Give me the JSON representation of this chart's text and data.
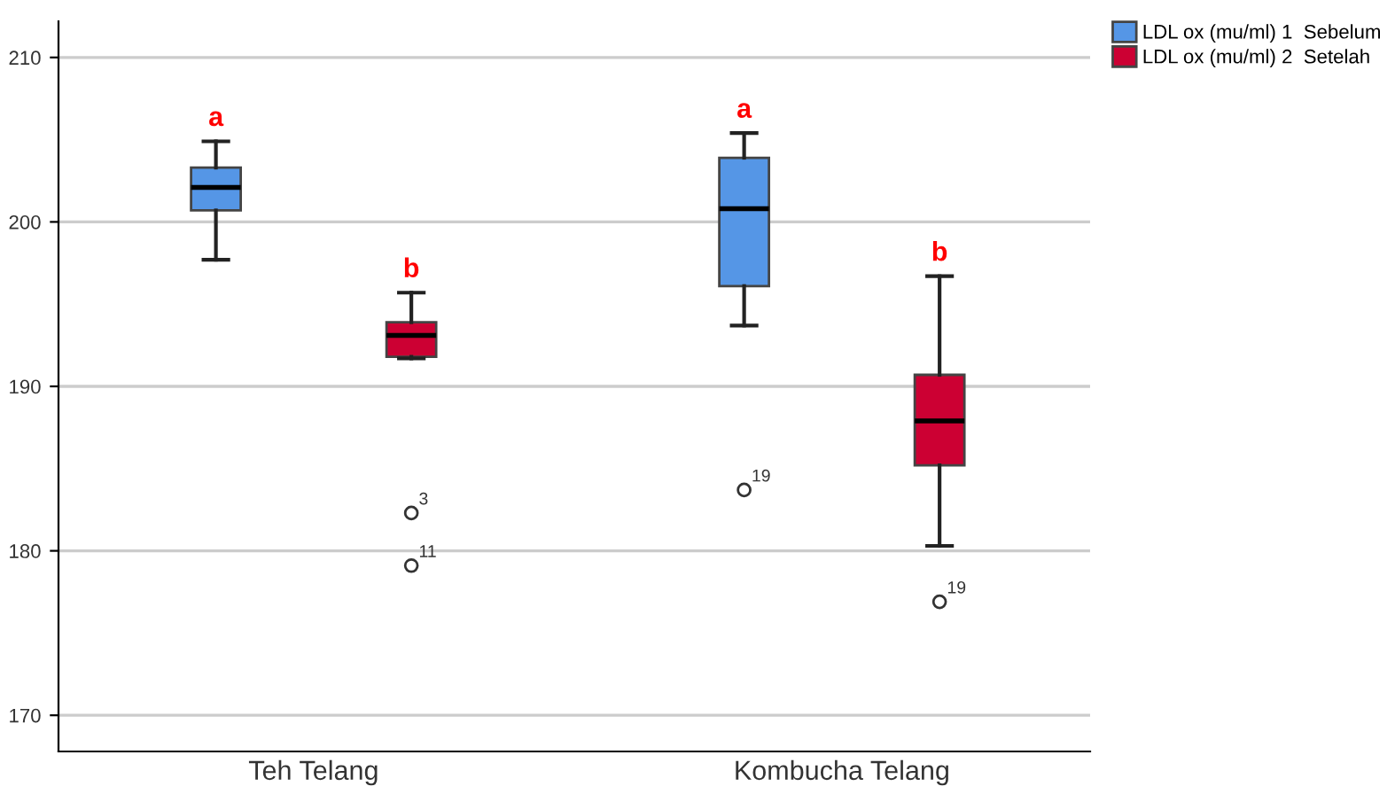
{
  "chart_data": {
    "type": "box",
    "categories": [
      "Teh Telang",
      "Kombucha Telang"
    ],
    "series": [
      {
        "name": "LDL ox (mu/ml) 1  Sebelum",
        "color": "#5596e6",
        "boxes": [
          {
            "low": 197.7,
            "q1": 200.7,
            "median": 202.1,
            "q3": 203.3,
            "high": 204.9
          },
          {
            "low": 193.7,
            "q1": 196.1,
            "median": 200.8,
            "q3": 203.9,
            "high": 205.4,
            "outliers": [
              183.7
            ]
          }
        ]
      },
      {
        "name": "LDL ox (mu/ml) 2  Setelah",
        "color": "#cc0033",
        "boxes": [
          {
            "low": 191.7,
            "q1": 191.8,
            "median": 193.1,
            "q3": 193.9,
            "high": 195.7,
            "outliers": [
              182.3,
              179.1
            ]
          },
          {
            "low": 180.3,
            "q1": 185.2,
            "median": 187.9,
            "q3": 190.7,
            "high": 196.7,
            "outliers": [
              176.9
            ]
          }
        ]
      }
    ],
    "annotations": [
      "a",
      "b",
      "a",
      "b",
      "3",
      "11",
      "19",
      "19"
    ],
    "ylim": [
      167.8,
      212.2
    ],
    "yticks": [
      170,
      180,
      190,
      200,
      210
    ],
    "grid": "y",
    "legend": "top right"
  }
}
